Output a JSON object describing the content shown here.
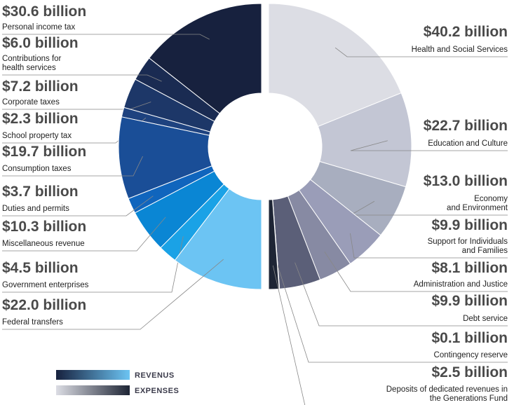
{
  "chart_data": {
    "type": "split-donut",
    "series": [
      {
        "name": "REVENUS",
        "labels": [
          "Personal income tax",
          "Contributions for\nhealth services",
          "Corporate taxes",
          "School property tax",
          "Consumption taxes",
          "Duties and permits",
          "Miscellaneous revenue",
          "Government enterprises",
          "Federal transfers"
        ],
        "values": [
          30.6,
          6.0,
          7.2,
          2.3,
          19.7,
          3.7,
          10.3,
          4.5,
          22.0
        ],
        "value_labels": [
          "$30.6 billion",
          "$6.0 billion",
          "$7.2 billion",
          "$2.3 billion",
          "$19.7 billion",
          "$3.7 billion",
          "$10.3 billion",
          "$4.5 billion",
          "$22.0 billion"
        ],
        "colors": [
          "#17213e",
          "#1a2b52",
          "#1d3768",
          "#1e427f",
          "#1a4e97",
          "#1065bd",
          "#0a86d4",
          "#1aa2e6",
          "#6cc4f3"
        ]
      },
      {
        "name": "EXPENSES",
        "labels": [
          "Health and Social Services",
          "Education and Culture",
          "Economy\nand Environment",
          "Support for Individuals\nand Families",
          "Administration and Justice",
          "Debt service",
          "Contingency reserve",
          "Deposits of dedicated revenues in\nthe Generations Fund"
        ],
        "values": [
          40.2,
          22.7,
          13.0,
          9.9,
          8.1,
          9.9,
          0.1,
          2.5
        ],
        "value_labels": [
          "$40.2 billion",
          "$22.7 billion",
          "$13.0 billion",
          "$9.9 billion",
          "$8.1 billion",
          "$9.9 billion",
          "$0.1 billion",
          "$2.5 billion"
        ],
        "colors": [
          "#dcdde4",
          "#c3c6d4",
          "#a8aebf",
          "#9a9db8",
          "#878aa3",
          "#5b5f78",
          "#3a3d4d",
          "#1e2535"
        ]
      }
    ]
  }
}
